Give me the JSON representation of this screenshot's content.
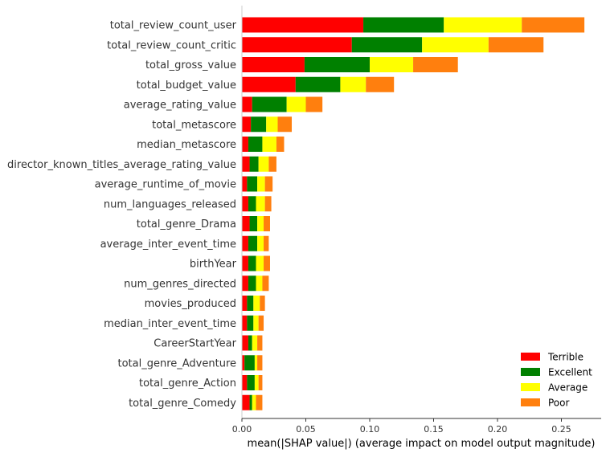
{
  "chart_data": {
    "type": "bar",
    "orientation": "horizontal",
    "stacked": true,
    "xlabel": "mean(|SHAP value|) (average impact on model output magnitude)",
    "ylabel": "",
    "xlim": [
      0,
      0.28
    ],
    "xticks": [
      "0.00",
      "0.05",
      "0.10",
      "0.15",
      "0.20",
      "0.25"
    ],
    "grid": false,
    "legend_position": "bottom-right",
    "categories": [
      "total_review_count_user",
      "total_review_count_critic",
      "total_gross_value",
      "total_budget_value",
      "average_rating_value",
      "total_metascore",
      "median_metascore",
      "director_known_titles_average_rating_value",
      "average_runtime_of_movie",
      "num_languages_released",
      "total_genre_Drama",
      "average_inter_event_time",
      "birthYear",
      "num_genres_directed",
      "movies_produced",
      "median_inter_event_time",
      "CareerStartYear",
      "total_genre_Adventure",
      "total_genre_Action",
      "total_genre_Comedy"
    ],
    "series": [
      {
        "name": "Terrible",
        "color": "#ff0000",
        "values": [
          0.095,
          0.086,
          0.049,
          0.042,
          0.008,
          0.007,
          0.005,
          0.006,
          0.004,
          0.005,
          0.006,
          0.005,
          0.005,
          0.005,
          0.004,
          0.004,
          0.005,
          0.002,
          0.004,
          0.006
        ]
      },
      {
        "name": "Excellent",
        "color": "#008000",
        "values": [
          0.063,
          0.055,
          0.051,
          0.035,
          0.027,
          0.012,
          0.011,
          0.007,
          0.008,
          0.006,
          0.006,
          0.007,
          0.006,
          0.006,
          0.005,
          0.005,
          0.003,
          0.008,
          0.006,
          0.002
        ]
      },
      {
        "name": "Average",
        "color": "#ffff00",
        "values": [
          0.061,
          0.052,
          0.034,
          0.02,
          0.015,
          0.009,
          0.011,
          0.008,
          0.006,
          0.007,
          0.005,
          0.005,
          0.006,
          0.005,
          0.005,
          0.004,
          0.004,
          0.002,
          0.003,
          0.003
        ]
      },
      {
        "name": "Poor",
        "color": "#ff7f0e",
        "values": [
          0.049,
          0.043,
          0.035,
          0.022,
          0.013,
          0.011,
          0.006,
          0.006,
          0.006,
          0.005,
          0.005,
          0.004,
          0.005,
          0.005,
          0.004,
          0.004,
          0.004,
          0.004,
          0.003,
          0.005
        ]
      }
    ]
  }
}
